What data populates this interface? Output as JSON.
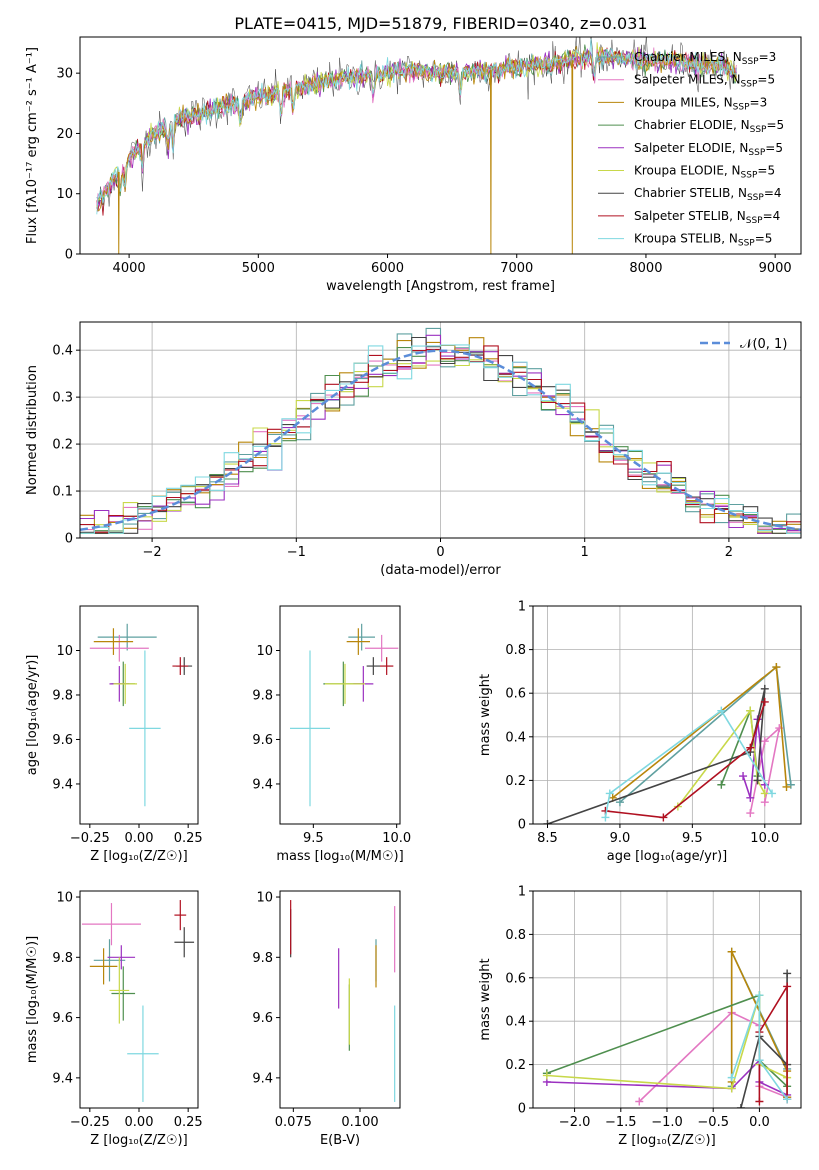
{
  "figure_title": "PLATE=0415, MJD=51879, FIBERID=0340, z=0.031",
  "models": [
    {
      "label": "Chabrier MILES, N",
      "sub": "SSP",
      "suffix": "=3",
      "color": "#5fa0a0"
    },
    {
      "label": "Salpeter MILES, N",
      "sub": "SSP",
      "suffix": "=5",
      "color": "#e377c2"
    },
    {
      "label": "Kroupa MILES, N",
      "sub": "SSP",
      "suffix": "=3",
      "color": "#b8860b"
    },
    {
      "label": "Chabrier ELODIE, N",
      "sub": "SSP",
      "suffix": "=5",
      "color": "#4f8f4f"
    },
    {
      "label": "Salpeter ELODIE, N",
      "sub": "SSP",
      "suffix": "=5",
      "color": "#9b30c0"
    },
    {
      "label": "Kroupa ELODIE, N",
      "sub": "SSP",
      "suffix": "=5",
      "color": "#c8d84a"
    },
    {
      "label": "Chabrier STELIB, N",
      "sub": "SSP",
      "suffix": "=4",
      "color": "#444444"
    },
    {
      "label": "Salpeter STELIB, N",
      "sub": "SSP",
      "suffix": "=4",
      "color": "#b01020"
    },
    {
      "label": "Kroupa STELIB, N",
      "sub": "SSP",
      "suffix": "=5",
      "color": "#7fd8e0"
    }
  ],
  "chart_data": [
    {
      "type": "line",
      "panel": "spectrum",
      "title": "PLATE=0415, MJD=51879, FIBERID=0340, z=0.031",
      "xlabel": "wavelength [Angstrom, rest frame]",
      "ylabel": "Flux [fλ10⁻¹⁷ erg cm⁻² s⁻¹ A⁻¹]",
      "xlim": [
        3620,
        9200
      ],
      "ylim": [
        0,
        36
      ],
      "xticks": [
        4000,
        5000,
        6000,
        7000,
        8000,
        9000
      ],
      "yticks": [
        0,
        10,
        20,
        30
      ],
      "continuum_x": [
        3750,
        3900,
        4000,
        4200,
        4400,
        4600,
        4800,
        5000,
        5200,
        5400,
        5600,
        5800,
        6000,
        6200,
        6400,
        6600,
        6800,
        7000,
        7200,
        7400,
        7600,
        7800,
        8000,
        8200,
        8400,
        8600,
        8700
      ],
      "continuum_y": [
        8,
        13,
        16,
        20,
        22.5,
        23.5,
        25,
        26,
        27,
        28,
        29,
        29.5,
        30,
        30.5,
        30,
        30.3,
        30.5,
        31,
        31.5,
        32,
        33,
        32.5,
        32,
        32,
        31.5,
        31,
        30
      ],
      "x_range": [
        3750,
        8700
      ],
      "dips": [
        {
          "model": 2,
          "x": 3920,
          "y": 0
        },
        {
          "model": 2,
          "x": 6800,
          "y": 0
        },
        {
          "model": 2,
          "x": 7430,
          "y": 0
        }
      ],
      "grid": false,
      "legend": "upper right"
    },
    {
      "type": "bar",
      "panel": "residual-histogram",
      "xlabel": "(data-model)/error",
      "ylabel": "Normed distribution",
      "xlim": [
        -2.5,
        2.5
      ],
      "ylim": [
        0,
        0.46
      ],
      "xticks": [
        -2,
        -1,
        0,
        1,
        2
      ],
      "yticks": [
        0,
        0.1,
        0.2,
        0.3,
        0.4
      ],
      "bin_width": 0.1,
      "reference_curve": {
        "name": "𝒩(0, 1)",
        "mu": 0,
        "sigma": 1,
        "color": "#5b8dd9"
      },
      "grid": true,
      "legend": "upper right"
    },
    {
      "type": "scatter",
      "panel": "age-vs-Z",
      "xlabel": "Z [log₁₀(Z/Z☉)]",
      "ylabel": "age  [log₁₀(age/yr)]",
      "xlim": [
        -0.3,
        0.3
      ],
      "ylim": [
        9.22,
        10.2
      ],
      "xticks": [
        -0.25,
        0,
        0.25
      ],
      "xtick_labels": [
        "−0.25",
        "0.00",
        "0.25"
      ],
      "yticks": [
        9.4,
        9.6,
        9.8,
        10.0
      ],
      "points": [
        {
          "model": 0,
          "x": -0.06,
          "y": 10.06,
          "xerr": 0.15,
          "yerr": 0.06
        },
        {
          "model": 1,
          "x": -0.1,
          "y": 10.01,
          "xerr": 0.15,
          "yerr": 0.06
        },
        {
          "model": 2,
          "x": -0.13,
          "y": 10.04,
          "xerr": 0.1,
          "yerr": 0.06
        },
        {
          "model": 3,
          "x": -0.08,
          "y": 9.85,
          "xerr": 0.06,
          "yerr": 0.1
        },
        {
          "model": 4,
          "x": -0.1,
          "y": 9.85,
          "xerr": 0.05,
          "yerr": 0.08
        },
        {
          "model": 5,
          "x": -0.07,
          "y": 9.85,
          "xerr": 0.06,
          "yerr": 0.09
        },
        {
          "model": 6,
          "x": 0.23,
          "y": 9.93,
          "xerr": 0.04,
          "yerr": 0.04
        },
        {
          "model": 7,
          "x": 0.21,
          "y": 9.93,
          "xerr": 0.04,
          "yerr": 0.04
        },
        {
          "model": 8,
          "x": 0.03,
          "y": 9.65,
          "xerr": 0.08,
          "yerr": 0.35
        }
      ],
      "grid": false
    },
    {
      "type": "scatter",
      "panel": "age-vs-mass",
      "xlabel": "mass [log₁₀(M/M☉)]",
      "ylabel": "",
      "xlim": [
        9.3,
        10.02
      ],
      "ylim": [
        9.22,
        10.2
      ],
      "xticks": [
        9.5,
        10.0
      ],
      "xtick_labels": [
        "9.5",
        "10.0"
      ],
      "yticks": [
        9.4,
        9.6,
        9.8,
        10.0
      ],
      "points": [
        {
          "model": 0,
          "x": 9.79,
          "y": 10.06,
          "xerr": 0.08,
          "yerr": 0.06
        },
        {
          "model": 1,
          "x": 9.91,
          "y": 10.01,
          "xerr": 0.1,
          "yerr": 0.06
        },
        {
          "model": 2,
          "x": 9.77,
          "y": 10.04,
          "xerr": 0.07,
          "yerr": 0.06
        },
        {
          "model": 3,
          "x": 9.68,
          "y": 9.85,
          "xerr": 0.12,
          "yerr": 0.1
        },
        {
          "model": 4,
          "x": 9.8,
          "y": 9.85,
          "xerr": 0.06,
          "yerr": 0.08
        },
        {
          "model": 5,
          "x": 9.69,
          "y": 9.85,
          "xerr": 0.12,
          "yerr": 0.09
        },
        {
          "model": 6,
          "x": 9.86,
          "y": 9.93,
          "xerr": 0.04,
          "yerr": 0.04
        },
        {
          "model": 7,
          "x": 9.94,
          "y": 9.93,
          "xerr": 0.04,
          "yerr": 0.04
        },
        {
          "model": 8,
          "x": 9.48,
          "y": 9.65,
          "xerr": 0.12,
          "yerr": 0.35
        }
      ],
      "grid": false
    },
    {
      "type": "line",
      "panel": "weight-vs-age",
      "xlabel": "age  [log₁₀(age/yr)]",
      "ylabel": "mass weight",
      "xlim": [
        8.4,
        10.25
      ],
      "ylim": [
        0,
        1
      ],
      "xticks": [
        8.5,
        9.0,
        9.5,
        10.0
      ],
      "xtick_labels": [
        "8.5",
        "9.0",
        "9.5",
        "10.0"
      ],
      "yticks": [
        0,
        0.2,
        0.4,
        0.6,
        0.8,
        1.0
      ],
      "series": [
        {
          "model": 0,
          "x": [
            9.0,
            10.08,
            10.18
          ],
          "y": [
            0.1,
            0.72,
            0.18
          ]
        },
        {
          "model": 1,
          "x": [
            9.9,
            10.0,
            10.1,
            10.0
          ],
          "y": [
            0.05,
            0.38,
            0.44,
            0.1
          ]
        },
        {
          "model": 2,
          "x": [
            8.95,
            10.08,
            10.15
          ],
          "y": [
            0.12,
            0.72,
            0.17
          ]
        },
        {
          "model": 3,
          "x": [
            9.7,
            9.9,
            9.95
          ],
          "y": [
            0.18,
            0.52,
            0.22
          ]
        },
        {
          "model": 4,
          "x": [
            9.85,
            9.9,
            9.95,
            10.0
          ],
          "y": [
            0.22,
            0.12,
            0.48,
            0.18
          ]
        },
        {
          "model": 5,
          "x": [
            9.4,
            9.9,
            9.95,
            10.0
          ],
          "y": [
            0.08,
            0.52,
            0.2,
            0.14
          ]
        },
        {
          "model": 6,
          "x": [
            8.5,
            9.9,
            10.0,
            9.95
          ],
          "y": [
            0.0,
            0.33,
            0.62,
            0.2
          ]
        },
        {
          "model": 7,
          "x": [
            8.9,
            9.3,
            9.9,
            10.0
          ],
          "y": [
            0.06,
            0.03,
            0.35,
            0.56
          ]
        },
        {
          "model": 8,
          "x": [
            8.9,
            8.93,
            9.7,
            10.05
          ],
          "y": [
            0.03,
            0.14,
            0.52,
            0.14
          ]
        }
      ],
      "grid": true
    },
    {
      "type": "scatter",
      "panel": "mass-vs-Z",
      "xlabel": "Z [log₁₀(Z/Z☉)]",
      "ylabel": "mass [log₁₀(M/M☉)]",
      "xlim": [
        -0.3,
        0.3
      ],
      "ylim": [
        9.3,
        10.02
      ],
      "xticks": [
        -0.25,
        0,
        0.25
      ],
      "xtick_labels": [
        "−0.25",
        "0.00",
        "0.25"
      ],
      "yticks": [
        9.4,
        9.6,
        9.8,
        10.0
      ],
      "points": [
        {
          "model": 0,
          "x": -0.15,
          "y": 9.79,
          "xerr": 0.08,
          "yerr": 0.07
        },
        {
          "model": 1,
          "x": -0.14,
          "y": 9.91,
          "xerr": 0.15,
          "yerr": 0.07
        },
        {
          "model": 2,
          "x": -0.18,
          "y": 9.77,
          "xerr": 0.07,
          "yerr": 0.06
        },
        {
          "model": 3,
          "x": -0.08,
          "y": 9.68,
          "xerr": 0.06,
          "yerr": 0.09
        },
        {
          "model": 4,
          "x": -0.09,
          "y": 9.8,
          "xerr": 0.07,
          "yerr": 0.04
        },
        {
          "model": 5,
          "x": -0.1,
          "y": 9.69,
          "xerr": 0.05,
          "yerr": 0.11
        },
        {
          "model": 6,
          "x": 0.23,
          "y": 9.85,
          "xerr": 0.05,
          "yerr": 0.05
        },
        {
          "model": 7,
          "x": 0.21,
          "y": 9.94,
          "xerr": 0.03,
          "yerr": 0.05
        },
        {
          "model": 8,
          "x": 0.02,
          "y": 9.48,
          "xerr": 0.08,
          "yerr": 0.16
        }
      ],
      "grid": false
    },
    {
      "type": "scatter",
      "panel": "mass-vs-ebv",
      "xlabel": "E(B-V)",
      "ylabel": "",
      "xlim": [
        0.07,
        0.115
      ],
      "ylim": [
        9.3,
        10.02
      ],
      "xticks": [
        0.075,
        0.1
      ],
      "xtick_labels": [
        "0.075",
        "0.100"
      ],
      "yticks": [
        9.4,
        9.6,
        9.8,
        10.0
      ],
      "points": [
        {
          "model": 0,
          "x": 0.106,
          "y": 9.79,
          "yerr": 0.07
        },
        {
          "model": 1,
          "x": 0.113,
          "y": 9.86,
          "yerr": 0.11
        },
        {
          "model": 2,
          "x": 0.106,
          "y": 9.77,
          "yerr": 0.07
        },
        {
          "model": 3,
          "x": 0.096,
          "y": 9.6,
          "yerr": 0.11
        },
        {
          "model": 4,
          "x": 0.092,
          "y": 9.73,
          "yerr": 0.1
        },
        {
          "model": 5,
          "x": 0.096,
          "y": 9.62,
          "yerr": 0.11
        },
        {
          "model": 6,
          "x": 0.074,
          "y": 9.88,
          "yerr": 0.08
        },
        {
          "model": 7,
          "x": 0.074,
          "y": 9.9,
          "yerr": 0.09
        },
        {
          "model": 8,
          "x": 0.113,
          "y": 9.48,
          "yerr": 0.16
        }
      ],
      "grid": false
    },
    {
      "type": "line",
      "panel": "weight-vs-Z",
      "xlabel": "Z [log₁₀(Z/Z☉)]",
      "ylabel": "mass weight",
      "xlim": [
        -2.45,
        0.45
      ],
      "ylim": [
        0,
        1
      ],
      "xticks": [
        -2.0,
        -1.5,
        -1.0,
        -0.5,
        0.0
      ],
      "xtick_labels": [
        "−2.0",
        "−1.5",
        "−1.0",
        "−0.5",
        "0.0"
      ],
      "yticks": [
        0,
        0.2,
        0.4,
        0.6,
        0.8,
        1.0
      ],
      "series": [
        {
          "model": 0,
          "x": [
            -0.3,
            -0.3,
            0.3,
            0.3
          ],
          "y": [
            0.1,
            0.72,
            0.18,
            0.05
          ]
        },
        {
          "model": 1,
          "x": [
            -1.3,
            -0.3,
            0.0,
            0.0,
            0.3
          ],
          "y": [
            0.03,
            0.44,
            0.38,
            0.1,
            0.05
          ]
        },
        {
          "model": 2,
          "x": [
            -0.3,
            -0.3,
            0.3,
            0.3
          ],
          "y": [
            0.12,
            0.72,
            0.17,
            0.05
          ]
        },
        {
          "model": 3,
          "x": [
            -2.3,
            0.0,
            0.0,
            0.3
          ],
          "y": [
            0.16,
            0.52,
            0.22,
            0.1
          ]
        },
        {
          "model": 4,
          "x": [
            -2.3,
            -0.3,
            0.0,
            0.0,
            0.3
          ],
          "y": [
            0.12,
            0.09,
            0.22,
            0.12,
            0.06
          ]
        },
        {
          "model": 5,
          "x": [
            -2.3,
            -0.3,
            0.0,
            0.0,
            0.3
          ],
          "y": [
            0.15,
            0.09,
            0.52,
            0.2,
            0.14
          ]
        },
        {
          "model": 6,
          "x": [
            -0.2,
            0.0,
            0.3,
            0.3
          ],
          "y": [
            0.0,
            0.33,
            0.2,
            0.62
          ]
        },
        {
          "model": 7,
          "x": [
            0.0,
            0.0,
            0.3,
            0.3
          ],
          "y": [
            0.03,
            0.35,
            0.56,
            0.04
          ]
        },
        {
          "model": 8,
          "x": [
            -0.3,
            0.0,
            0.0,
            0.3
          ],
          "y": [
            0.14,
            0.52,
            0.22,
            0.04
          ]
        }
      ],
      "grid": true
    }
  ]
}
